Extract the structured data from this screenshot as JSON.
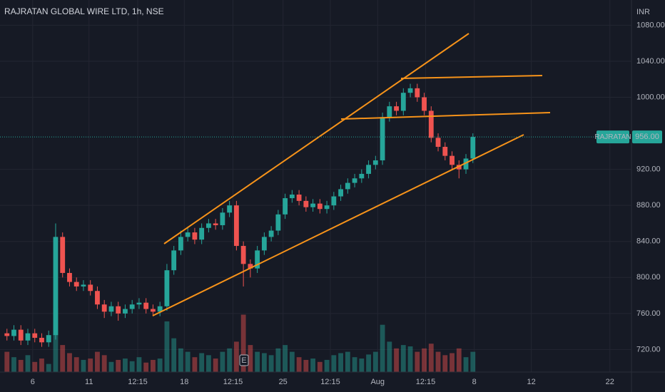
{
  "chart_data": {
    "type": "candlestick",
    "title": "RAJRATAN GLOBAL WIRE LTD, 1h, NSE",
    "currency": "INR",
    "up_color": "#26a69a",
    "down_color": "#ef5350",
    "grid": true,
    "ylim": [
      695,
      1108
    ],
    "yticks": [
      {
        "value": 720,
        "label": "720.00"
      },
      {
        "value": 760,
        "label": "760.00"
      },
      {
        "value": 800,
        "label": "800.00"
      },
      {
        "value": 840,
        "label": "840.00"
      },
      {
        "value": 880,
        "label": "880.00"
      },
      {
        "value": 920,
        "label": "920.00"
      },
      {
        "value": 1000,
        "label": "1000.00"
      },
      {
        "value": 1040,
        "label": "1040.00"
      },
      {
        "value": 1080,
        "label": "1080.00"
      }
    ],
    "xlim": [
      -1,
      89.8
    ],
    "xticks": [
      {
        "value": 3.7,
        "label": "6"
      },
      {
        "value": 11.8,
        "label": "11"
      },
      {
        "value": 18.8,
        "label": "12:15"
      },
      {
        "value": 25.5,
        "label": "18"
      },
      {
        "value": 32.5,
        "label": "12:15"
      },
      {
        "value": 39.7,
        "label": "25"
      },
      {
        "value": 46.5,
        "label": "12:15"
      },
      {
        "value": 53.3,
        "label": "Aug"
      },
      {
        "value": 60.2,
        "label": "12:15"
      },
      {
        "value": 67.2,
        "label": "8"
      },
      {
        "value": 75.4,
        "label": "12"
      },
      {
        "value": 86.7,
        "label": "22"
      }
    ],
    "open": [
      738,
      735,
      742,
      730,
      738,
      733,
      728,
      736,
      845,
      805,
      795,
      790,
      792,
      785,
      770,
      762,
      768,
      760,
      765,
      770,
      772,
      765,
      762,
      768,
      808,
      830,
      845,
      850,
      842,
      855,
      860,
      858,
      872,
      880,
      835,
      815,
      810,
      830,
      845,
      852,
      870,
      888,
      892,
      885,
      878,
      882,
      876,
      880,
      890,
      898,
      905,
      910,
      915,
      925,
      930,
      978,
      990,
      985,
      1005,
      1010,
      1000,
      985,
      955,
      945,
      935,
      925,
      920,
      932
    ],
    "high": [
      743,
      747,
      747,
      743,
      743,
      738,
      741,
      860,
      850,
      810,
      800,
      797,
      797,
      790,
      775,
      773,
      773,
      770,
      775,
      777,
      777,
      770,
      773,
      815,
      835,
      852,
      855,
      855,
      860,
      865,
      865,
      877,
      885,
      885,
      840,
      820,
      835,
      850,
      857,
      875,
      893,
      897,
      897,
      890,
      887,
      887,
      885,
      895,
      903,
      910,
      915,
      920,
      930,
      935,
      983,
      995,
      995,
      1010,
      1015,
      1015,
      1005,
      990,
      960,
      950,
      940,
      930,
      937,
      960
    ],
    "low": [
      730,
      730,
      725,
      725,
      728,
      723,
      723,
      731,
      800,
      790,
      785,
      785,
      780,
      765,
      755,
      757,
      752,
      755,
      760,
      765,
      760,
      757,
      757,
      763,
      803,
      825,
      840,
      837,
      837,
      850,
      853,
      853,
      867,
      830,
      790,
      800,
      805,
      825,
      840,
      847,
      865,
      883,
      880,
      873,
      873,
      871,
      871,
      875,
      885,
      893,
      900,
      905,
      910,
      920,
      925,
      973,
      980,
      980,
      1000,
      995,
      980,
      950,
      940,
      930,
      920,
      910,
      915,
      927
    ],
    "close": [
      735,
      742,
      730,
      738,
      733,
      728,
      736,
      845,
      805,
      795,
      790,
      792,
      785,
      770,
      762,
      768,
      760,
      765,
      770,
      772,
      765,
      762,
      768,
      808,
      830,
      845,
      850,
      842,
      855,
      860,
      858,
      872,
      880,
      835,
      815,
      810,
      830,
      845,
      852,
      870,
      888,
      892,
      885,
      878,
      882,
      876,
      880,
      890,
      898,
      905,
      910,
      915,
      925,
      930,
      978,
      990,
      985,
      1005,
      1010,
      1000,
      985,
      955,
      945,
      935,
      925,
      920,
      932,
      956
    ],
    "volume": [
      30,
      22,
      18,
      25,
      15,
      20,
      12,
      95,
      40,
      28,
      22,
      18,
      20,
      30,
      25,
      15,
      18,
      20,
      16,
      22,
      14,
      18,
      20,
      75,
      50,
      35,
      30,
      22,
      28,
      25,
      20,
      30,
      35,
      45,
      85,
      40,
      30,
      28,
      25,
      35,
      40,
      30,
      22,
      18,
      20,
      15,
      18,
      25,
      28,
      30,
      22,
      20,
      26,
      30,
      70,
      45,
      35,
      40,
      38,
      30,
      35,
      42,
      30,
      25,
      28,
      35,
      22,
      30
    ],
    "last": {
      "name": "RAJRATAN",
      "value": 956,
      "value_label": "956.00"
    },
    "event_marker": "E"
  }
}
